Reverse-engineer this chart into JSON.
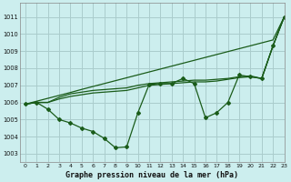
{
  "title": "Graphe pression niveau de la mer (hPa)",
  "bg_color": "#cceeee",
  "grid_color": "#aacccc",
  "line_color": "#1a5c1a",
  "xlim": [
    -0.5,
    23
  ],
  "ylim": [
    1002.5,
    1011.8
  ],
  "yticks": [
    1003,
    1004,
    1005,
    1006,
    1007,
    1008,
    1009,
    1010,
    1011
  ],
  "xticks": [
    0,
    1,
    2,
    3,
    4,
    5,
    6,
    7,
    8,
    9,
    10,
    11,
    12,
    13,
    14,
    15,
    16,
    17,
    18,
    19,
    20,
    21,
    22,
    23
  ],
  "series_marked": [
    1005.9,
    1006.0,
    1005.6,
    1005.0,
    1004.8,
    1004.5,
    1004.3,
    1003.9,
    1003.35,
    1003.4,
    1005.4,
    1007.05,
    1007.1,
    1007.1,
    1007.4,
    1007.1,
    1005.1,
    1005.4,
    1006.0,
    1007.6,
    1007.5,
    1007.4,
    1009.3,
    1011.0
  ],
  "series_smooth1": [
    1005.9,
    1006.0,
    1006.0,
    1006.2,
    1006.35,
    1006.45,
    1006.55,
    1006.6,
    1006.65,
    1006.7,
    1006.85,
    1007.0,
    1007.05,
    1007.1,
    1007.15,
    1007.2,
    1007.2,
    1007.25,
    1007.35,
    1007.45,
    1007.5,
    1007.4,
    1009.3,
    1011.0
  ],
  "series_smooth2": [
    1005.9,
    1006.0,
    1006.0,
    1006.3,
    1006.5,
    1006.6,
    1006.7,
    1006.75,
    1006.8,
    1006.85,
    1007.0,
    1007.1,
    1007.15,
    1007.2,
    1007.25,
    1007.3,
    1007.3,
    1007.35,
    1007.4,
    1007.5,
    1007.55,
    1007.4,
    1009.3,
    1011.0
  ],
  "series_diagonal": [
    1005.9,
    1006.07,
    1006.24,
    1006.41,
    1006.58,
    1006.76,
    1006.93,
    1007.1,
    1007.27,
    1007.44,
    1007.61,
    1007.78,
    1007.95,
    1008.12,
    1008.29,
    1008.46,
    1008.63,
    1008.8,
    1008.97,
    1009.14,
    1009.31,
    1009.48,
    1009.65,
    1011.0
  ]
}
